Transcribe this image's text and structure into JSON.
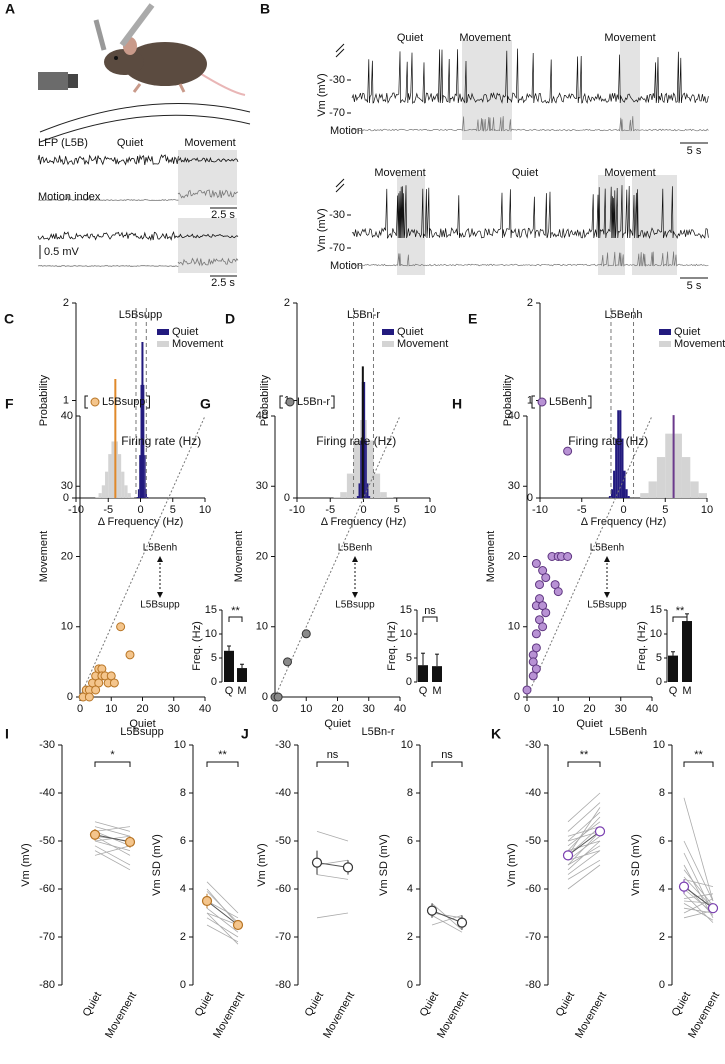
{
  "figure": {
    "panel_a": {
      "letter": "A",
      "lfp_label": "LFP (L5B)",
      "quiet": "Quiet",
      "movement": "Movement",
      "motion_label": "Motion index",
      "scale_time_1": "2.5 s",
      "scale_voltage": "0.5 mV",
      "scale_time_2": "2.5 s"
    },
    "panel_b": {
      "letter": "B",
      "top": {
        "labels": [
          "Quiet",
          "Movement",
          "Movement"
        ],
        "y_label": "Vm (mV)",
        "yticks": [
          -30,
          -70
        ],
        "motion_label": "Motion",
        "scale_time": "5 s"
      },
      "bottom": {
        "labels": [
          "Movement",
          "Quiet",
          "Movement"
        ],
        "y_label": "Vm (mV)",
        "yticks": [
          -30,
          -70
        ],
        "motion_label": "Motion",
        "scale_time": "5 s"
      }
    }
  },
  "chart_data": [
    {
      "type": "histogram",
      "panel": "C",
      "title": "L5Bsupp",
      "xlabel": "Δ Frequency (Hz)",
      "ylabel": "Probability",
      "xlim": [
        -10,
        10
      ],
      "xticks": [
        -10,
        -5,
        0,
        5,
        10
      ],
      "ylim": [
        0,
        2
      ],
      "yticks": [
        0,
        1,
        2
      ],
      "series": [
        {
          "name": "Quiet",
          "color": "#221a7e",
          "bins": [
            -0.6,
            -0.4,
            -0.2,
            0,
            0.2,
            0.4,
            0.6,
            0.8,
            1.0,
            1.2
          ],
          "values": [
            0.01,
            0.09,
            0.44,
            1.16,
            1.6,
            1.16,
            0.44,
            0.09,
            0.01
          ]
        },
        {
          "name": "Movement",
          "color": "#d4d4d4",
          "bins": [
            -7,
            -6.5,
            -6,
            -5.5,
            -5,
            -4.5,
            -4,
            -3.5,
            -3,
            -2.5,
            -2,
            -1.5,
            -1
          ],
          "values": [
            0.01,
            0.05,
            0.13,
            0.27,
            0.45,
            0.58,
            0.58,
            0.45,
            0.27,
            0.13,
            0.05,
            0.01
          ]
        }
      ],
      "mean_lines": [
        {
          "x": -3.9,
          "y": 1.22,
          "color": "#e0892a"
        },
        {
          "x": 0.3,
          "y": 1.6,
          "color": "#221a7e"
        }
      ],
      "thresholds": [
        -0.7,
        0.9
      ]
    },
    {
      "type": "histogram",
      "panel": "D",
      "title": "L5Bn-r",
      "xlabel": "Δ Frequency (Hz)",
      "ylabel": "Probability",
      "xlim": [
        -10,
        10
      ],
      "xticks": [
        -10,
        -5,
        0,
        5,
        10
      ],
      "ylim": [
        0,
        2
      ],
      "yticks": [
        0,
        1,
        2
      ],
      "series": [
        {
          "name": "Quiet",
          "color": "#221a7e",
          "bins": [
            -1,
            -0.75,
            -0.5,
            -0.25,
            0,
            0.25,
            0.5,
            0.75,
            1
          ],
          "values": [
            0.02,
            0.15,
            0.59,
            1.19,
            1.19,
            0.59,
            0.15,
            0.02
          ]
        },
        {
          "name": "Movement",
          "color": "#d4d4d4",
          "bins": [
            -4.5,
            -3.5,
            -2.5,
            -1.5,
            -0.5,
            0.5,
            1.5,
            2.5,
            3.5,
            4.5
          ],
          "values": [
            0.01,
            0.06,
            0.25,
            0.59,
            0.8,
            0.59,
            0.25,
            0.06,
            0.01
          ]
        }
      ],
      "mean_lines": [
        {
          "x": -0.1,
          "y": 1.35,
          "color": "#111111"
        }
      ],
      "thresholds": [
        -1.5,
        1.5
      ]
    },
    {
      "type": "histogram",
      "panel": "E",
      "title": "L5Benh",
      "xlabel": "Δ Frequency (Hz)",
      "ylabel": "Probability",
      "xlim": [
        -10,
        10
      ],
      "xticks": [
        -10,
        -5,
        0,
        5,
        10
      ],
      "ylim": [
        0,
        2
      ],
      "yticks": [
        0,
        1,
        2
      ],
      "series": [
        {
          "name": "Quiet",
          "color": "#221a7e",
          "bins": [
            -1.75,
            -1.5,
            -1.25,
            -1,
            -0.75,
            -0.5,
            -0.25,
            0,
            0.25,
            0.5,
            0.75
          ],
          "values": [
            0.02,
            0.09,
            0.28,
            0.61,
            0.9,
            0.9,
            0.61,
            0.28,
            0.09,
            0.02
          ]
        },
        {
          "name": "Movement",
          "color": "#d4d4d4",
          "bins": [
            2,
            3,
            4,
            5,
            6,
            7,
            8,
            9,
            10
          ],
          "values": [
            0.05,
            0.17,
            0.42,
            0.66,
            0.66,
            0.42,
            0.17,
            0.05
          ]
        }
      ],
      "mean_lines": [
        {
          "x": 6,
          "y": 0.85,
          "color": "#6b3a8c"
        }
      ],
      "thresholds": [
        -1.5,
        1.2
      ]
    },
    {
      "type": "scatter",
      "panel": "F",
      "legend_label": "L5Bsupp",
      "title": "Firing rate (Hz)",
      "xlabel": "Quiet",
      "ylabel": "Movement",
      "xlim": [
        0,
        40
      ],
      "xticks": [
        0,
        10,
        20,
        30,
        40
      ],
      "ylim": [
        0,
        40
      ],
      "yticks": [
        0,
        10,
        20,
        30,
        40
      ],
      "color": "#f4c58c",
      "edge_color": "#b77424",
      "x": [
        1,
        2,
        3,
        4,
        5,
        6,
        7,
        7,
        8,
        6,
        9,
        10,
        11,
        13,
        16,
        5,
        3
      ],
      "y": [
        0,
        1,
        1,
        2,
        3,
        4,
        4,
        3,
        3,
        2,
        2,
        3,
        2,
        10,
        6,
        1,
        0
      ],
      "annotations": [
        "L5Benh",
        "L5Bsupp"
      ],
      "inset": {
        "type": "bar",
        "ylabel": "Freq. (Hz)",
        "categories": [
          "Q",
          "M"
        ],
        "values": [
          6.5,
          2.9
        ],
        "errors": [
          1,
          0.8
        ],
        "ylim": [
          0,
          15
        ],
        "yticks": [
          0,
          5,
          10,
          15
        ],
        "color": "#111111",
        "significance": "**"
      }
    },
    {
      "type": "scatter",
      "panel": "G",
      "legend_label": "L5Bn-r",
      "title": "Firing rate (Hz)",
      "xlabel": "Quiet",
      "ylabel": "Movement",
      "xlim": [
        0,
        40
      ],
      "xticks": [
        0,
        10,
        20,
        30,
        40
      ],
      "ylim": [
        0,
        40
      ],
      "yticks": [
        0,
        10,
        20,
        30,
        40
      ],
      "color": "#8a8a8a",
      "edge_color": "#333333",
      "x": [
        0,
        1,
        4,
        10
      ],
      "y": [
        0,
        0,
        5,
        9
      ],
      "annotations": [
        "L5Benh",
        "L5Bsupp"
      ],
      "inset": {
        "type": "bar",
        "ylabel": "Freq. (Hz)",
        "categories": [
          "Q",
          "M"
        ],
        "values": [
          3.5,
          3.3
        ],
        "errors": [
          2.5,
          2.5
        ],
        "ylim": [
          0,
          15
        ],
        "yticks": [
          0,
          5,
          10,
          15
        ],
        "color": "#111111",
        "significance": "ns"
      }
    },
    {
      "type": "scatter",
      "panel": "H",
      "legend_label": "L5Benh",
      "title": "Firing rate (Hz)",
      "xlabel": "Quiet",
      "ylabel": "Movement",
      "xlim": [
        0,
        40
      ],
      "xticks": [
        0,
        10,
        20,
        30,
        40
      ],
      "ylim": [
        0,
        40
      ],
      "yticks": [
        0,
        10,
        20,
        30,
        40
      ],
      "color": "#b892d4",
      "edge_color": "#5e3580",
      "x": [
        0,
        2,
        3,
        2,
        3,
        4,
        3,
        4,
        3,
        5,
        6,
        4,
        5,
        5,
        6,
        8,
        9,
        10,
        10,
        11,
        13,
        13,
        2,
        3
      ],
      "y": [
        1,
        6,
        7,
        5,
        9,
        11,
        13,
        16,
        19,
        18,
        17,
        14,
        13,
        10,
        12,
        20,
        16,
        15,
        20,
        20,
        20,
        35,
        3,
        4
      ],
      "annotations": [
        "L5Benh",
        "L5Bsupp"
      ],
      "inset": {
        "type": "bar",
        "ylabel": "Freq. (Hz)",
        "categories": [
          "Q",
          "M"
        ],
        "values": [
          5.5,
          12.7
        ],
        "errors": [
          0.8,
          1.5
        ],
        "ylim": [
          0,
          15
        ],
        "yticks": [
          0,
          5,
          10,
          15
        ],
        "color": "#111111",
        "significance": "**"
      }
    },
    {
      "type": "paired",
      "panel": "I",
      "title": "L5Bsupp",
      "ylabel": "Vm (mV)",
      "ylim": [
        -80,
        -30
      ],
      "yticks": [
        -80,
        -70,
        -60,
        -50,
        -40,
        -30
      ],
      "categories": [
        "Quiet",
        "Movement"
      ],
      "color": "#f4c58c",
      "edge_color": "#b77424",
      "pairs": [
        [
          -46,
          -48
        ],
        [
          -47,
          -49
        ],
        [
          -48,
          -51
        ],
        [
          -49,
          -50
        ],
        [
          -50,
          -52
        ],
        [
          -49,
          -53
        ],
        [
          -51,
          -55
        ],
        [
          -52,
          -56
        ],
        [
          -48,
          -47
        ],
        [
          -50,
          -49
        ],
        [
          -53,
          -51
        ]
      ],
      "means": [
        -48.7,
        -50.2
      ],
      "errors": [
        1.2,
        1.2
      ],
      "significance": "*"
    },
    {
      "type": "paired",
      "ylabel": "Vm SD (mV)",
      "ylim": [
        0,
        10
      ],
      "yticks": [
        0,
        2,
        4,
        6,
        8,
        10
      ],
      "categories": [
        "Quiet",
        "Movement"
      ],
      "color": "#f4c58c",
      "edge_color": "#b77424",
      "pairs": [
        [
          3,
          2.5
        ],
        [
          4,
          2.5
        ],
        [
          3.5,
          2.8
        ],
        [
          2.8,
          2
        ],
        [
          4.3,
          3
        ],
        [
          3.9,
          2.6
        ],
        [
          3.2,
          2.2
        ],
        [
          2.5,
          1.8
        ],
        [
          3,
          1.7
        ]
      ],
      "means": [
        3.5,
        2.5
      ],
      "errors": [
        0.3,
        0.2
      ],
      "significance": "**"
    },
    {
      "type": "paired",
      "panel": "J",
      "title": "L5Bn-r",
      "ylabel": "Vm (mV)",
      "ylim": [
        -80,
        -30
      ],
      "yticks": [
        -80,
        -70,
        -60,
        -50,
        -40,
        -30
      ],
      "categories": [
        "Quiet",
        "Movement"
      ],
      "color": "#ffffff",
      "edge_color": "#333333",
      "pairs": [
        [
          -48,
          -50
        ],
        [
          -55,
          -54
        ],
        [
          -57,
          -58
        ],
        [
          -66,
          -65
        ]
      ],
      "means": [
        -54.5,
        -55.5
      ],
      "errors": [
        2.5,
        1.5
      ],
      "significance": "ns"
    },
    {
      "type": "paired",
      "ylabel": "Vm SD (mV)",
      "ylim": [
        0,
        10
      ],
      "yticks": [
        0,
        2,
        4,
        6,
        8,
        10
      ],
      "categories": [
        "Quiet",
        "Movement"
      ],
      "color": "#ffffff",
      "edge_color": "#333333",
      "pairs": [
        [
          3.4,
          2.3
        ],
        [
          3,
          2.8
        ],
        [
          2.9,
          2.2
        ],
        [
          2.5,
          2.9
        ]
      ],
      "means": [
        3.1,
        2.6
      ],
      "errors": [
        0.3,
        0.3
      ],
      "significance": "ns"
    },
    {
      "type": "paired",
      "panel": "K",
      "title": "L5Benh",
      "ylabel": "Vm (mV)",
      "ylim": [
        -80,
        -30
      ],
      "yticks": [
        -80,
        -70,
        -60,
        -50,
        -40,
        -30
      ],
      "categories": [
        "Quiet",
        "Movement"
      ],
      "color": "#ffffff",
      "edge_color": "#7a3fb0",
      "pairs": [
        [
          -46,
          -40
        ],
        [
          -48,
          -42
        ],
        [
          -50,
          -44
        ],
        [
          -51,
          -46
        ],
        [
          -52,
          -45
        ],
        [
          -53,
          -47
        ],
        [
          -54,
          -49
        ],
        [
          -55,
          -48
        ],
        [
          -56,
          -50
        ],
        [
          -57,
          -52
        ],
        [
          -50,
          -48
        ],
        [
          -52,
          -50
        ],
        [
          -54,
          -52
        ],
        [
          -58,
          -54
        ],
        [
          -60,
          -55
        ],
        [
          -53,
          -43
        ],
        [
          -49,
          -47
        ],
        [
          -55,
          -51
        ]
      ],
      "means": [
        -53,
        -48
      ],
      "errors": [
        1,
        1
      ],
      "significance": "**"
    },
    {
      "type": "paired",
      "ylabel": "Vm SD (mV)",
      "ylim": [
        0,
        10
      ],
      "yticks": [
        0,
        2,
        4,
        6,
        8,
        10
      ],
      "categories": [
        "Quiet",
        "Movement"
      ],
      "color": "#ffffff",
      "edge_color": "#7a3fb0",
      "pairs": [
        [
          5.5,
          3
        ],
        [
          6,
          3.5
        ],
        [
          5,
          2.8
        ],
        [
          4.5,
          3.2
        ],
        [
          4,
          3
        ],
        [
          3.8,
          2.6
        ],
        [
          3.5,
          3.4
        ],
        [
          3.2,
          3
        ],
        [
          4.2,
          2.9
        ],
        [
          3,
          3.6
        ],
        [
          2.8,
          3.1
        ],
        [
          3.6,
          3.8
        ],
        [
          4.8,
          3.3
        ],
        [
          3.4,
          2.7
        ],
        [
          7.8,
          3.5
        ],
        [
          4.4,
          4.1
        ]
      ],
      "means": [
        4.1,
        3.2
      ],
      "errors": [
        0.3,
        0.2
      ],
      "significance": "**"
    }
  ]
}
